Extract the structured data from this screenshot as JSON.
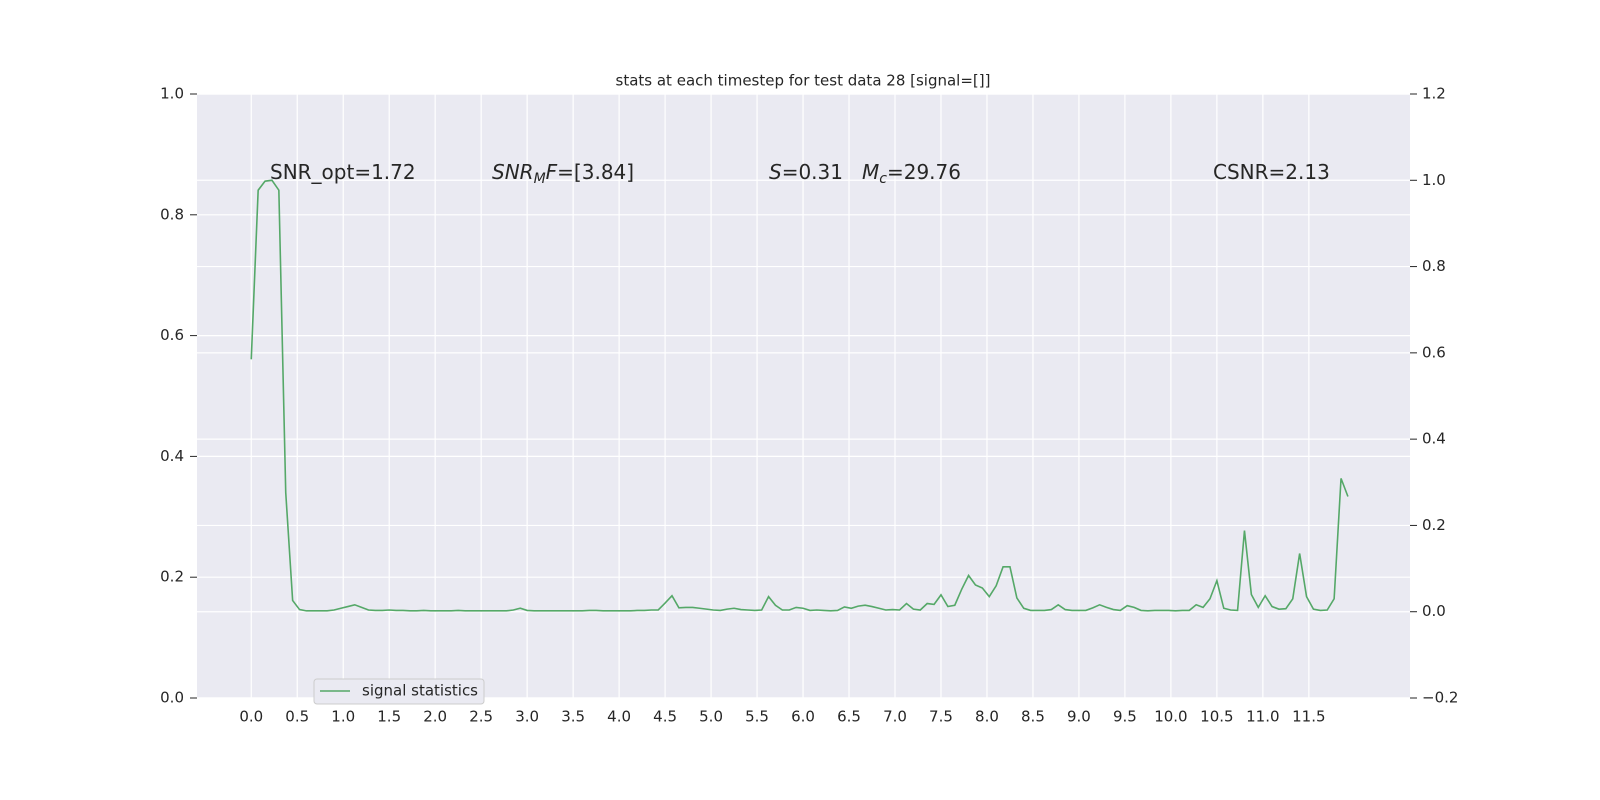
{
  "chart_data": {
    "type": "line",
    "title": "stats at each timestep for test data 28 [signal=[]]",
    "annotations": [
      [
        "SNR_opt=1.72"
      ],
      [
        "SNR",
        "M",
        "F",
        "=[3.84]"
      ],
      [
        "S",
        "=0.31"
      ],
      [
        "M",
        "c",
        "=29.76"
      ],
      [
        "CSNR=2.13"
      ]
    ],
    "x": [
      0,
      0.075,
      0.15,
      0.225,
      0.3,
      0.375,
      0.45,
      0.525,
      0.6,
      0.675,
      0.75,
      0.825,
      0.9,
      0.975,
      1.05,
      1.125,
      1.2,
      1.275,
      1.35,
      1.425,
      1.5,
      1.575,
      1.65,
      1.725,
      1.8,
      1.875,
      1.95,
      2.025,
      2.1,
      2.175,
      2.25,
      2.325,
      2.4,
      2.475,
      2.55,
      2.625,
      2.7,
      2.775,
      2.85,
      2.925,
      3,
      3.075,
      3.15,
      3.225,
      3.3,
      3.375,
      3.45,
      3.525,
      3.6,
      3.675,
      3.75,
      3.825,
      3.9,
      3.975,
      4.05,
      4.125,
      4.2,
      4.275,
      4.35,
      4.425,
      4.5,
      4.575,
      4.65,
      4.725,
      4.8,
      4.875,
      4.95,
      5.025,
      5.1,
      5.175,
      5.25,
      5.325,
      5.4,
      5.475,
      5.55,
      5.625,
      5.7,
      5.775,
      5.85,
      5.925,
      6,
      6.075,
      6.15,
      6.225,
      6.3,
      6.375,
      6.45,
      6.525,
      6.6,
      6.675,
      6.75,
      6.825,
      6.9,
      6.975,
      7.05,
      7.125,
      7.2,
      7.275,
      7.35,
      7.425,
      7.5,
      7.575,
      7.65,
      7.725,
      7.8,
      7.875,
      7.95,
      8.025,
      8.1,
      8.175,
      8.25,
      8.325,
      8.4,
      8.475,
      8.55,
      8.625,
      8.7,
      8.775,
      8.85,
      8.925,
      9,
      9.075,
      9.15,
      9.225,
      9.3,
      9.375,
      9.45,
      9.525,
      9.6,
      9.675,
      9.75,
      9.825,
      9.9,
      9.975,
      10.05,
      10.125,
      10.2,
      10.275,
      10.35,
      10.425,
      10.5,
      10.575,
      10.65,
      10.725,
      10.8,
      10.875,
      10.95,
      11.025,
      11.1,
      11.175,
      11.25,
      11.325,
      11.4,
      11.475,
      11.55,
      11.625,
      11.7,
      11.775,
      11.85,
      11.925
    ],
    "series": [
      {
        "name": "signal statistics",
        "color": "#55a868",
        "axis": "y2",
        "values": [
          0.585,
          0.977,
          0.998,
          1.0,
          0.977,
          0.276,
          0.026,
          0.005,
          0.002,
          0.002,
          0.002,
          0.002,
          0.004,
          0.008,
          0.012,
          0.016,
          0.01,
          0.004,
          0.003,
          0.003,
          0.004,
          0.003,
          0.003,
          0.002,
          0.002,
          0.003,
          0.002,
          0.002,
          0.002,
          0.002,
          0.003,
          0.002,
          0.002,
          0.002,
          0.002,
          0.002,
          0.002,
          0.002,
          0.004,
          0.008,
          0.003,
          0.002,
          0.002,
          0.002,
          0.002,
          0.002,
          0.002,
          0.002,
          0.002,
          0.003,
          0.003,
          0.002,
          0.002,
          0.002,
          0.002,
          0.002,
          0.003,
          0.003,
          0.004,
          0.004,
          0.02,
          0.037,
          0.009,
          0.01,
          0.01,
          0.008,
          0.006,
          0.004,
          0.003,
          0.006,
          0.008,
          0.005,
          0.004,
          0.003,
          0.004,
          0.035,
          0.015,
          0.004,
          0.004,
          0.01,
          0.008,
          0.003,
          0.004,
          0.003,
          0.002,
          0.003,
          0.011,
          0.008,
          0.013,
          0.015,
          0.012,
          0.008,
          0.004,
          0.005,
          0.004,
          0.019,
          0.006,
          0.004,
          0.019,
          0.017,
          0.039,
          0.012,
          0.015,
          0.052,
          0.084,
          0.062,
          0.055,
          0.035,
          0.06,
          0.104,
          0.104,
          0.032,
          0.008,
          0.003,
          0.003,
          0.003,
          0.005,
          0.016,
          0.005,
          0.003,
          0.003,
          0.003,
          0.009,
          0.016,
          0.01,
          0.005,
          0.003,
          0.014,
          0.01,
          0.003,
          0.002,
          0.003,
          0.003,
          0.003,
          0.002,
          0.003,
          0.003,
          0.016,
          0.01,
          0.03,
          0.072,
          0.008,
          0.004,
          0.003,
          0.188,
          0.04,
          0.01,
          0.037,
          0.012,
          0.006,
          0.007,
          0.03,
          0.135,
          0.035,
          0.006,
          0.003,
          0.004,
          0.03,
          0.309,
          0.267
        ]
      }
    ],
    "xlim": [
      -0.59,
      12.6
    ],
    "xticks": [
      {
        "value": 0,
        "label": "0.0"
      },
      {
        "value": 0.5,
        "label": "0.5"
      },
      {
        "value": 1,
        "label": "1.0"
      },
      {
        "value": 1.5,
        "label": "1.5"
      },
      {
        "value": 2,
        "label": "2.0"
      },
      {
        "value": 2.5,
        "label": "2.5"
      },
      {
        "value": 3,
        "label": "3.0"
      },
      {
        "value": 3.5,
        "label": "3.5"
      },
      {
        "value": 4,
        "label": "4.0"
      },
      {
        "value": 4.5,
        "label": "4.5"
      },
      {
        "value": 5,
        "label": "5.0"
      },
      {
        "value": 5.5,
        "label": "5.5"
      },
      {
        "value": 6,
        "label": "6.0"
      },
      {
        "value": 6.5,
        "label": "6.5"
      },
      {
        "value": 7,
        "label": "7.0"
      },
      {
        "value": 7.5,
        "label": "7.5"
      },
      {
        "value": 8,
        "label": "8.0"
      },
      {
        "value": 8.5,
        "label": "8.5"
      },
      {
        "value": 9,
        "label": "9.0"
      },
      {
        "value": 9.5,
        "label": "9.5"
      },
      {
        "value": 10,
        "label": "10.0"
      },
      {
        "value": 10.5,
        "label": "10.5"
      },
      {
        "value": 11,
        "label": "11.0"
      },
      {
        "value": 11.5,
        "label": "11.5"
      }
    ],
    "ylim": [
      0,
      1
    ],
    "yticks": [
      {
        "value": 0,
        "label": "0.0"
      },
      {
        "value": 0.2,
        "label": "0.2"
      },
      {
        "value": 0.4,
        "label": "0.4"
      },
      {
        "value": 0.6,
        "label": "0.6"
      },
      {
        "value": 0.8,
        "label": "0.8"
      },
      {
        "value": 1,
        "label": "1.0"
      }
    ],
    "y2lim": [
      -0.2,
      1.2
    ],
    "y2ticks": [
      {
        "value": -0.2,
        "label": "−0.2"
      },
      {
        "value": 0,
        "label": "0.0"
      },
      {
        "value": 0.2,
        "label": "0.2"
      },
      {
        "value": 0.4,
        "label": "0.4"
      },
      {
        "value": 0.6,
        "label": "0.6"
      },
      {
        "value": 0.8,
        "label": "0.8"
      },
      {
        "value": 1,
        "label": "1.0"
      },
      {
        "value": 1.2,
        "label": "1.2"
      }
    ],
    "grid": true,
    "legend": "lower left"
  }
}
